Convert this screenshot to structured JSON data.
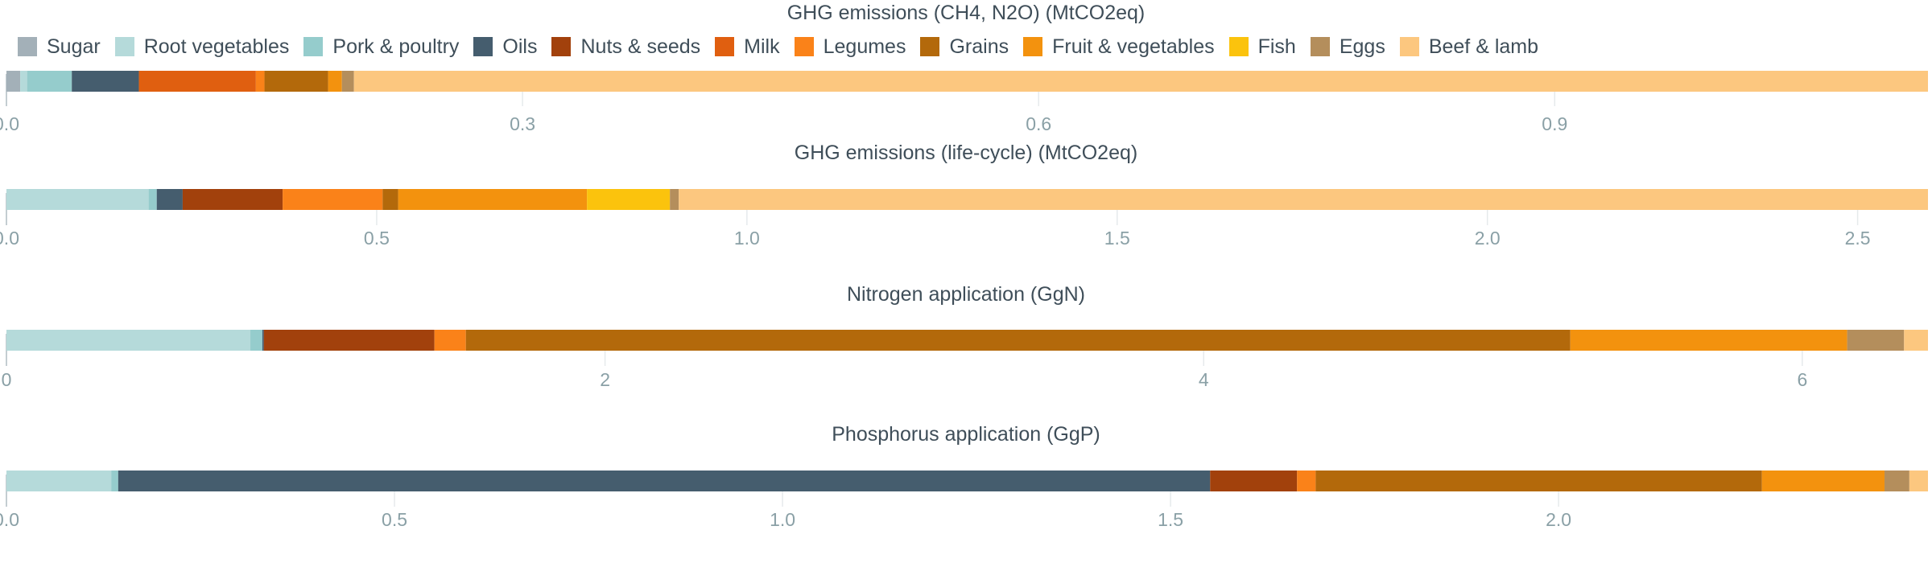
{
  "legend": [
    {
      "name": "Sugar",
      "color": "#a3b0b8"
    },
    {
      "name": "Root vegetables",
      "color": "#b5dada"
    },
    {
      "name": "Pork & poultry",
      "color": "#95cccc"
    },
    {
      "name": "Oils",
      "color": "#455d6e"
    },
    {
      "name": "Nuts & seeds",
      "color": "#a2410c"
    },
    {
      "name": "Milk",
      "color": "#e05f10"
    },
    {
      "name": "Legumes",
      "color": "#fa8219"
    },
    {
      "name": "Grains",
      "color": "#b3690b"
    },
    {
      "name": "Fruit & vegetables",
      "color": "#f3920e"
    },
    {
      "name": "Fish",
      "color": "#fbc30d"
    },
    {
      "name": "Eggs",
      "color": "#b48e5c"
    },
    {
      "name": "Beef & lamb",
      "color": "#fcc77f"
    }
  ],
  "chart_data": [
    {
      "type": "bar",
      "orientation": "horizontal-stacked",
      "title": "GHG emissions (CH4, N2O) (MtCO2eq)",
      "xlim": [
        0,
        1.117
      ],
      "ticks": [
        0,
        0.3,
        0.6,
        0.9
      ],
      "tick_labels": [
        "0.0",
        "0.3",
        "0.6",
        "0.9"
      ],
      "segments": [
        {
          "name": "Sugar",
          "value": 0.008
        },
        {
          "name": "Root vegetables",
          "value": 0.004
        },
        {
          "name": "Pork & poultry",
          "value": 0.026
        },
        {
          "name": "Oils",
          "value": 0.039
        },
        {
          "name": "Milk",
          "value": 0.068
        },
        {
          "name": "Legumes",
          "value": 0.005
        },
        {
          "name": "Grains",
          "value": 0.037
        },
        {
          "name": "Fruit & vegetables",
          "value": 0.008
        },
        {
          "name": "Eggs",
          "value": 0.007
        },
        {
          "name": "Beef & lamb",
          "value": 0.915
        }
      ]
    },
    {
      "type": "bar",
      "orientation": "horizontal-stacked",
      "title": "GHG emissions (life-cycle) (MtCO2eq)",
      "xlim": [
        0,
        2.595
      ],
      "ticks": [
        0,
        0.5,
        1.0,
        1.5,
        2.0,
        2.5
      ],
      "tick_labels": [
        "0.0",
        "0.5",
        "1.0",
        "1.5",
        "2.0",
        "2.5"
      ],
      "segments": [
        {
          "name": "Root vegetables",
          "value": 0.192
        },
        {
          "name": "Pork & poultry",
          "value": 0.011
        },
        {
          "name": "Oils",
          "value": 0.035
        },
        {
          "name": "Nuts & seeds",
          "value": 0.135
        },
        {
          "name": "Legumes",
          "value": 0.135
        },
        {
          "name": "Grains",
          "value": 0.021
        },
        {
          "name": "Fruit & vegetables",
          "value": 0.255
        },
        {
          "name": "Fish",
          "value": 0.112
        },
        {
          "name": "Eggs",
          "value": 0.012
        },
        {
          "name": "Beef & lamb",
          "value": 1.687
        }
      ]
    },
    {
      "type": "bar",
      "orientation": "horizontal-stacked",
      "title": "Nitrogen application (GgN)",
      "xlim": [
        0,
        6.42
      ],
      "ticks": [
        0,
        2,
        4,
        6
      ],
      "tick_labels": [
        "0",
        "2",
        "4",
        "6"
      ],
      "segments": [
        {
          "name": "Root vegetables",
          "value": 0.815
        },
        {
          "name": "Pork & poultry",
          "value": 0.04
        },
        {
          "name": "Oils",
          "value": 0.005
        },
        {
          "name": "Nuts & seeds",
          "value": 0.57
        },
        {
          "name": "Legumes",
          "value": 0.105
        },
        {
          "name": "Grains",
          "value": 3.69
        },
        {
          "name": "Fruit & vegetables",
          "value": 0.925
        },
        {
          "name": "Eggs",
          "value": 0.19
        },
        {
          "name": "Beef & lamb",
          "value": 0.08
        }
      ]
    },
    {
      "type": "bar",
      "orientation": "horizontal-stacked",
      "title": "Phosphorus application (GgP)",
      "xlim": [
        0,
        2.476
      ],
      "ticks": [
        0,
        0.5,
        1.0,
        1.5,
        2.0
      ],
      "tick_labels": [
        "0.0",
        "0.5",
        "1.0",
        "1.5",
        "2.0"
      ],
      "segments": [
        {
          "name": "Root vegetables",
          "value": 0.135
        },
        {
          "name": "Pork & poultry",
          "value": 0.009
        },
        {
          "name": "Oils",
          "value": 1.407
        },
        {
          "name": "Nuts & seeds",
          "value": 0.112
        },
        {
          "name": "Legumes",
          "value": 0.024
        },
        {
          "name": "Grains",
          "value": 0.575
        },
        {
          "name": "Fruit & vegetables",
          "value": 0.158
        },
        {
          "name": "Eggs",
          "value": 0.032
        },
        {
          "name": "Beef & lamb",
          "value": 0.024
        }
      ]
    }
  ]
}
